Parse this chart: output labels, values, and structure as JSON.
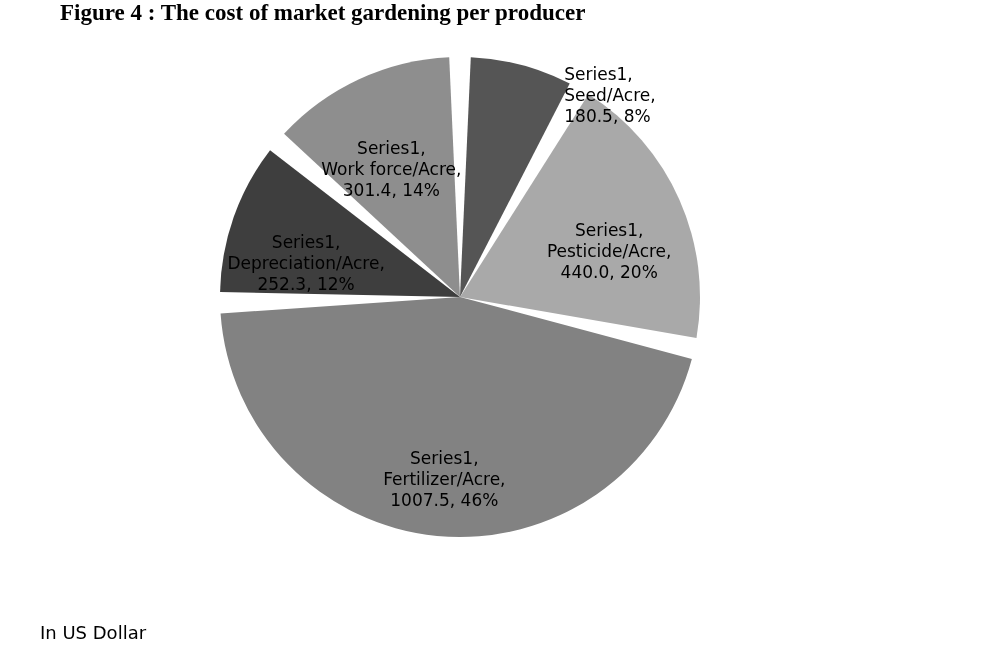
{
  "chart_data": {
    "type": "pie",
    "title": "Figure 4 : The cost of market gardening per producer",
    "categories": [
      null,
      null,
      null,
      null,
      null
    ],
    "values": [
      180.5,
      440.0,
      1007.5,
      252.3,
      301.4
    ],
    "colors": [
      "#555555",
      "#a9a9a9",
      "#828282",
      "#3e3e3e",
      "#8e8e8e"
    ],
    "value_labels": [
      "Series1, Seed/Acre, 180.5, 8%",
      "Series1, Pesticide/Acre, 440.0, 20%",
      "Series1, Fertilizer/Acre, 1007.5, 46%",
      "Series1, Depreciation/Acre, 252.3, 12%",
      "Series1, Work force/Acre, 301.4, 14%"
    ],
    "legend": false,
    "annotations": [
      "In US Dollar"
    ]
  }
}
